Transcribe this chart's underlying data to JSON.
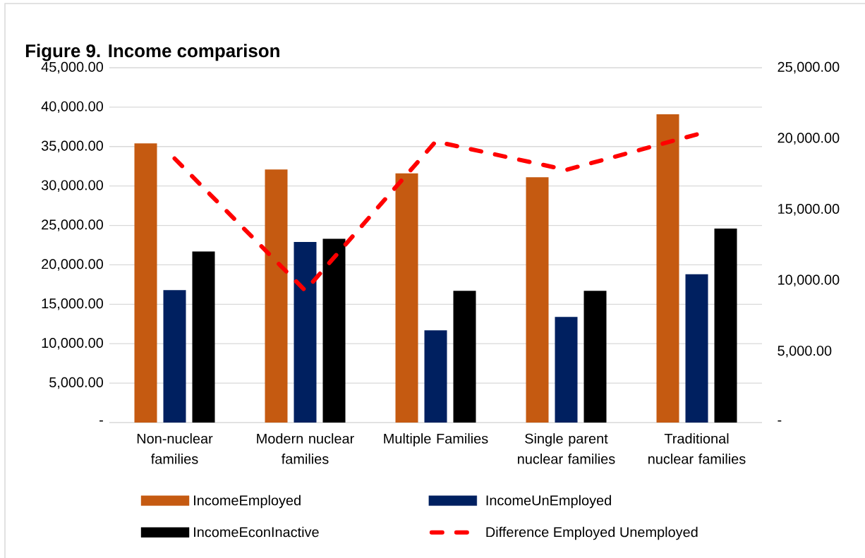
{
  "chart_data": {
    "type": "bar",
    "title": "Figure 9. Income comparison",
    "categories": [
      "Non-nuclear families",
      "Modern nuclear families",
      "Multiple Families",
      "Single parent nuclear families",
      "Traditional nuclear families"
    ],
    "series": [
      {
        "name": "IncomeEmployed",
        "color": "#c55a11",
        "values": [
          35400,
          32100,
          31600,
          31100,
          39100
        ]
      },
      {
        "name": "IncomeUnEmployed",
        "color": "#002060",
        "values": [
          16800,
          22900,
          11700,
          13400,
          18800
        ]
      },
      {
        "name": "IncomeEconInactive",
        "color": "#000000",
        "values": [
          21700,
          23300,
          16700,
          16700,
          24600
        ]
      },
      {
        "name": "Difference Employed Unemployed",
        "type": "line",
        "axis": "y2",
        "color": "#ff0000",
        "line_style": "dashed",
        "values": [
          18600,
          9300,
          19800,
          17800,
          20300
        ]
      }
    ],
    "ylim": [
      0,
      45000
    ],
    "yticks": [
      {
        "value": 0,
        "label": "-"
      },
      {
        "value": 5000,
        "label": "5,000.00"
      },
      {
        "value": 10000,
        "label": "10,000.00"
      },
      {
        "value": 15000,
        "label": "15,000.00"
      },
      {
        "value": 20000,
        "label": "20,000.00"
      },
      {
        "value": 25000,
        "label": "25,000.00"
      },
      {
        "value": 30000,
        "label": "30,000.00"
      },
      {
        "value": 35000,
        "label": "35,000.00"
      },
      {
        "value": 40000,
        "label": "40,000.00"
      },
      {
        "value": 45000,
        "label": "45,000.00"
      }
    ],
    "y2lim": [
      0,
      25000
    ],
    "y2ticks": [
      {
        "value": 0,
        "label": "-"
      },
      {
        "value": 5000,
        "label": "5,000.00"
      },
      {
        "value": 10000,
        "label": "10,000.00"
      },
      {
        "value": 15000,
        "label": "15,000.00"
      },
      {
        "value": 20000,
        "label": "20,000.00"
      },
      {
        "value": 25000,
        "label": "25,000.00"
      }
    ],
    "grid": "y",
    "legend": "bottom"
  }
}
